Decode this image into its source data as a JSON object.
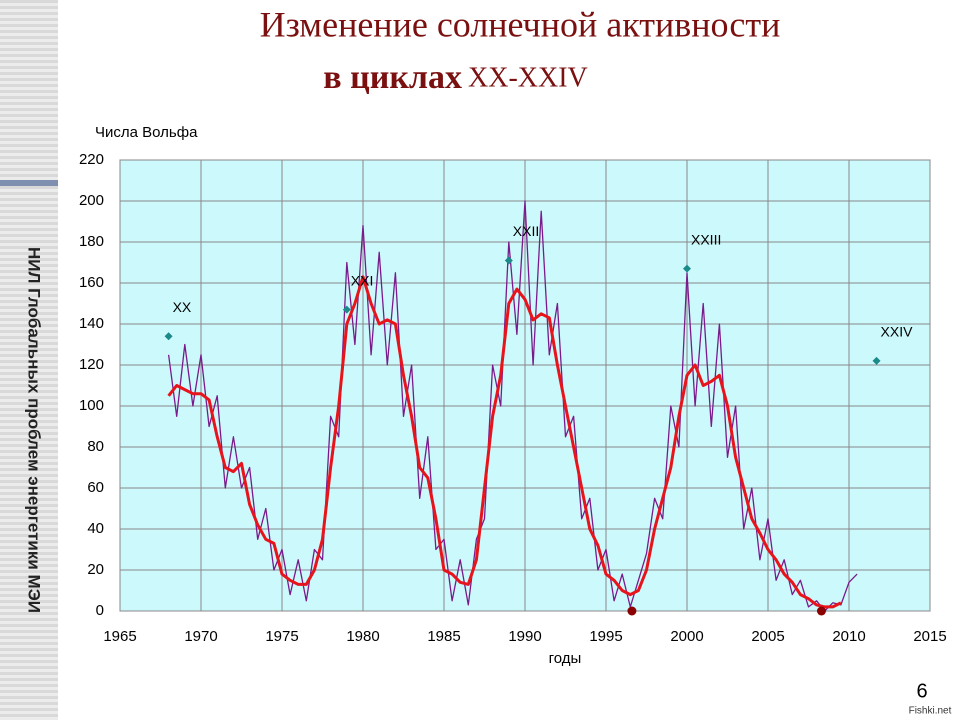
{
  "slide": {
    "title_line1": "Изменение солнечной активности",
    "title_line2": "в циклах",
    "title_line2_suffix": "XX-XXIV",
    "side_text": "НИЛ Глобальных проблем энергетики МЭИ",
    "page_number": "6",
    "watermark": "Fishki.net"
  },
  "chart_data": {
    "type": "line",
    "y_label": "Числа Вольфа",
    "x_label": "годы",
    "xlim": [
      1965,
      2015
    ],
    "xticks": [
      1965,
      1970,
      1975,
      1980,
      1985,
      1990,
      1995,
      2000,
      2005,
      2010,
      2015
    ],
    "ylim": [
      0,
      220
    ],
    "yticks": [
      0,
      20,
      40,
      60,
      80,
      100,
      120,
      140,
      160,
      180,
      200,
      220
    ],
    "grid": true,
    "series": [
      {
        "kind": "line",
        "color": "#7a1a8c",
        "width": 1.3,
        "x": [
          1968,
          1968.5,
          1969,
          1969.5,
          1970,
          1970.5,
          1971,
          1971.5,
          1972,
          1972.5,
          1973,
          1973.5,
          1974,
          1974.5,
          1975,
          1975.5,
          1976,
          1976.5,
          1977,
          1977.5,
          1978,
          1978.5,
          1979,
          1979.5,
          1980,
          1980.5,
          1981,
          1981.5,
          1982,
          1982.5,
          1983,
          1983.5,
          1984,
          1984.5,
          1985,
          1985.5,
          1986,
          1986.5,
          1987,
          1987.5,
          1988,
          1988.5,
          1989,
          1989.5,
          1990,
          1990.5,
          1991,
          1991.5,
          1992,
          1992.5,
          1993,
          1993.5,
          1994,
          1994.5,
          1995,
          1995.5,
          1996,
          1996.5,
          1997,
          1997.5,
          1998,
          1998.5,
          1999,
          1999.5,
          2000,
          2000.5,
          2001,
          2001.5,
          2002,
          2002.5,
          2003,
          2003.5,
          2004,
          2004.5,
          2005,
          2005.5,
          2006,
          2006.5,
          2007,
          2007.5,
          2008,
          2008.5,
          2009,
          2009.5,
          2010,
          2010.5
        ],
        "values": [
          125,
          95,
          130,
          100,
          125,
          90,
          105,
          60,
          85,
          60,
          70,
          35,
          50,
          20,
          30,
          8,
          25,
          5,
          30,
          25,
          95,
          85,
          170,
          130,
          188,
          125,
          175,
          120,
          165,
          95,
          120,
          55,
          85,
          30,
          35,
          5,
          25,
          3,
          35,
          45,
          120,
          100,
          180,
          135,
          200,
          120,
          195,
          125,
          150,
          85,
          95,
          45,
          55,
          20,
          30,
          5,
          18,
          2,
          15,
          28,
          55,
          45,
          100,
          80,
          165,
          100,
          150,
          90,
          140,
          75,
          100,
          40,
          60,
          25,
          45,
          15,
          25,
          8,
          15,
          2,
          5,
          0,
          4,
          3,
          14,
          18
        ]
      },
      {
        "kind": "line",
        "color": "#e8141c",
        "width": 3,
        "x": [
          1968,
          1968.5,
          1969,
          1969.5,
          1970,
          1970.5,
          1971,
          1971.5,
          1972,
          1972.5,
          1973,
          1973.5,
          1974,
          1974.5,
          1975,
          1975.5,
          1976,
          1976.5,
          1977,
          1977.5,
          1978,
          1978.5,
          1979,
          1979.5,
          1980,
          1980.5,
          1981,
          1981.5,
          1982,
          1982.5,
          1983,
          1983.5,
          1984,
          1984.5,
          1985,
          1985.5,
          1986,
          1986.5,
          1987,
          1987.5,
          1988,
          1988.5,
          1989,
          1989.5,
          1990,
          1990.5,
          1991,
          1991.5,
          1992,
          1992.5,
          1993,
          1993.5,
          1994,
          1994.5,
          1995,
          1995.5,
          1996,
          1996.5,
          1997,
          1997.5,
          1998,
          1998.5,
          1999,
          1999.5,
          2000,
          2000.5,
          2001,
          2001.5,
          2002,
          2002.5,
          2003,
          2003.5,
          2004,
          2004.5,
          2005,
          2005.5,
          2006,
          2006.5,
          2007,
          2007.5,
          2008,
          2008.5,
          2009,
          2009.5,
          2010,
          2010.5
        ],
        "values": [
          105,
          110,
          108,
          106,
          106,
          103,
          85,
          70,
          68,
          72,
          52,
          42,
          35,
          33,
          18,
          15,
          13,
          13,
          20,
          35,
          70,
          100,
          140,
          150,
          163,
          150,
          140,
          142,
          140,
          115,
          95,
          70,
          65,
          45,
          20,
          18,
          14,
          13,
          25,
          60,
          95,
          115,
          150,
          157,
          152,
          142,
          145,
          143,
          120,
          100,
          80,
          60,
          40,
          32,
          18,
          15,
          10,
          8,
          10,
          20,
          40,
          55,
          70,
          95,
          115,
          120,
          110,
          112,
          115,
          100,
          75,
          60,
          45,
          38,
          30,
          25,
          18,
          14,
          8,
          6,
          3,
          2,
          2,
          4,
          null,
          null
        ]
      },
      {
        "kind": "scatter",
        "marker": "diamond",
        "color": "#1a8a8a",
        "x": [
          1968,
          1979,
          1989,
          2000,
          2011.7
        ],
        "values": [
          134,
          147,
          171,
          167,
          122
        ],
        "labels": [
          "XX",
          "XXI",
          "XXII",
          "XXIII",
          "XXIV"
        ]
      },
      {
        "kind": "scatter",
        "marker": "circle",
        "color": "#8b0000",
        "x": [
          1996.6,
          2008.3
        ],
        "values": [
          0,
          0
        ]
      }
    ]
  }
}
